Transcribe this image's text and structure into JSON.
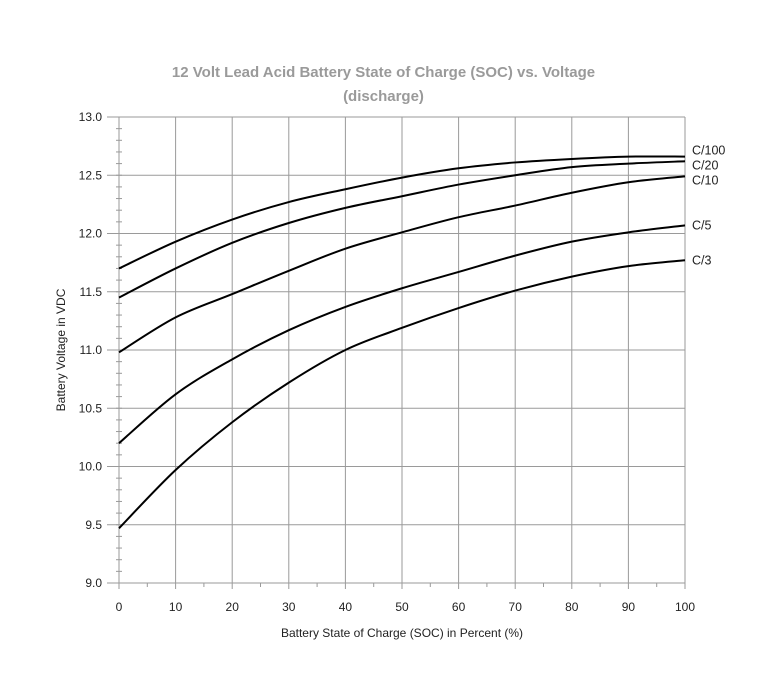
{
  "chart_data": {
    "type": "line",
    "title": "12 Volt Lead Acid Battery State of Charge (SOC) vs. Voltage",
    "subtitle": "(discharge)",
    "xlabel": "Battery State of Charge (SOC) in Percent (%)",
    "ylabel": "Battery Voltage in VDC",
    "xlim": [
      0,
      100
    ],
    "ylim": [
      9.0,
      13.0
    ],
    "x_ticks": [
      0,
      10,
      20,
      30,
      40,
      50,
      60,
      70,
      80,
      90,
      100
    ],
    "y_ticks": [
      "9.0",
      "9.5",
      "10.0",
      "10.5",
      "11.0",
      "11.5",
      "12.0",
      "12.5",
      "13.0"
    ],
    "grid": true,
    "legend_position": "inline-right",
    "x": [
      0,
      10,
      20,
      30,
      40,
      50,
      60,
      70,
      80,
      90,
      100
    ],
    "series": [
      {
        "name": "C/100",
        "values": [
          11.7,
          11.93,
          12.12,
          12.27,
          12.38,
          12.48,
          12.56,
          12.61,
          12.64,
          12.66,
          12.66
        ]
      },
      {
        "name": "C/20",
        "values": [
          11.45,
          11.7,
          11.92,
          12.09,
          12.22,
          12.32,
          12.42,
          12.5,
          12.57,
          12.6,
          12.62
        ]
      },
      {
        "name": "C/10",
        "values": [
          10.98,
          11.28,
          11.48,
          11.68,
          11.87,
          12.01,
          12.14,
          12.24,
          12.35,
          12.44,
          12.49
        ]
      },
      {
        "name": "C/5",
        "values": [
          10.2,
          10.62,
          10.92,
          11.17,
          11.37,
          11.53,
          11.67,
          11.81,
          11.93,
          12.01,
          12.07
        ]
      },
      {
        "name": "C/3",
        "values": [
          9.47,
          9.97,
          10.38,
          10.72,
          11.0,
          11.19,
          11.36,
          11.51,
          11.63,
          11.72,
          11.77
        ]
      }
    ],
    "colors": {
      "line": "#000000",
      "grid": "#9a9a9a",
      "title": "#9a9a9a",
      "text": "#222222"
    }
  }
}
